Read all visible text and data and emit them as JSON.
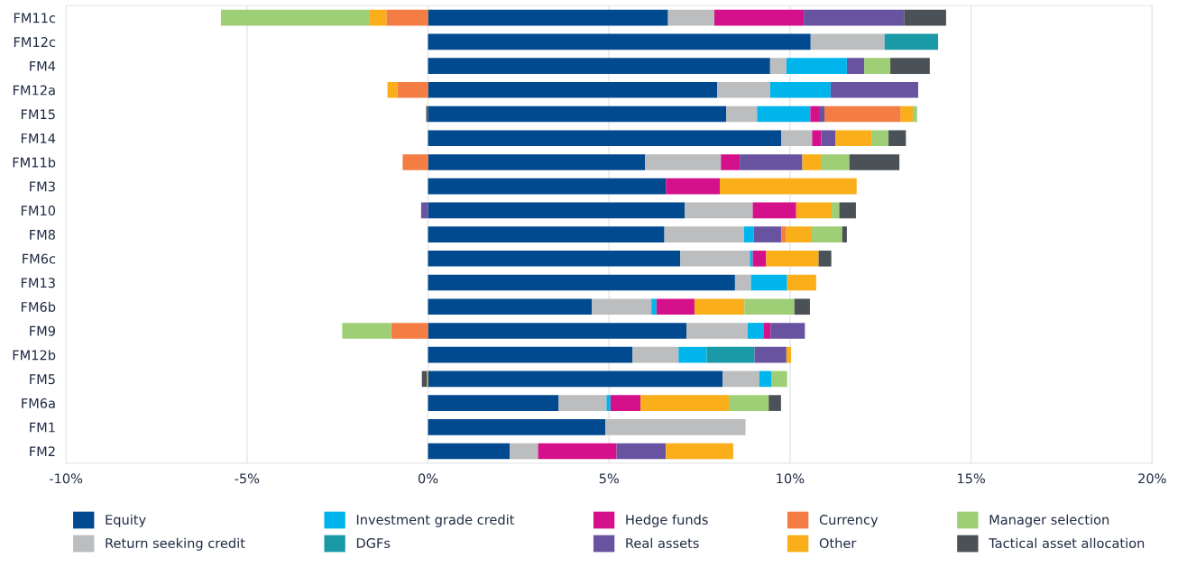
{
  "chart_data": {
    "type": "bar",
    "orientation": "horizontal",
    "stacked": true,
    "categories": [
      "FM11c",
      "FM12c",
      "FM4",
      "FM12a",
      "FM15",
      "FM14",
      "FM11b",
      "FM3",
      "FM10",
      "FM8",
      "FM6c",
      "FM13",
      "FM6b",
      "FM9",
      "FM12b",
      "FM5",
      "FM6a",
      "FM1",
      "FM2"
    ],
    "series": [
      {
        "name": "Equity",
        "color": "#014a8f",
        "values": [
          6.63,
          10.57,
          9.45,
          7.99,
          8.24,
          9.76,
          6.0,
          6.57,
          7.09,
          6.53,
          6.97,
          8.48,
          4.53,
          7.14,
          5.65,
          8.14,
          3.61,
          4.9,
          2.26
        ]
      },
      {
        "name": "Return seeking credit",
        "color": "#bcbdbe",
        "values": [
          1.28,
          2.04,
          0.45,
          1.46,
          0.85,
          0.85,
          2.09,
          null,
          1.88,
          2.2,
          1.92,
          0.44,
          1.64,
          1.69,
          1.27,
          1.01,
          1.32,
          3.87,
          0.78
        ]
      },
      {
        "name": "Investment grade credit",
        "color": "#00b5ec",
        "values": [
          null,
          null,
          1.67,
          1.67,
          1.47,
          null,
          null,
          null,
          null,
          0.27,
          0.08,
          1.0,
          0.14,
          0.45,
          0.78,
          0.33,
          0.11,
          null,
          null
        ]
      },
      {
        "name": "DGFs",
        "color": "#1a9aa6",
        "values": [
          null,
          1.48,
          null,
          null,
          null,
          null,
          null,
          null,
          null,
          null,
          null,
          null,
          null,
          null,
          1.32,
          null,
          null,
          null,
          null
        ]
      },
      {
        "name": "Hedge funds",
        "color": "#d4108b",
        "values": [
          2.47,
          null,
          null,
          null,
          0.24,
          0.25,
          0.52,
          1.49,
          1.2,
          null,
          0.37,
          null,
          1.05,
          0.18,
          null,
          null,
          0.83,
          null,
          2.17
        ]
      },
      {
        "name": "Real assets",
        "color": "#6853a1",
        "values": [
          2.77,
          null,
          0.48,
          2.42,
          0.15,
          0.39,
          1.73,
          null,
          -0.19,
          0.76,
          null,
          null,
          null,
          0.95,
          0.88,
          null,
          null,
          null,
          1.36
        ]
      },
      {
        "name": "Currency",
        "color": "#f47d44",
        "values": [
          -1.15,
          null,
          null,
          -0.85,
          2.11,
          null,
          -0.7,
          null,
          null,
          0.12,
          null,
          null,
          null,
          -1.02,
          null,
          null,
          null,
          null,
          null
        ]
      },
      {
        "name": "Other",
        "color": "#f9ae1a",
        "values": [
          -0.48,
          null,
          null,
          -0.27,
          0.33,
          1.0,
          0.51,
          3.78,
          0.98,
          0.72,
          1.45,
          0.8,
          1.38,
          null,
          0.13,
          -0.03,
          2.44,
          null,
          1.86
        ]
      },
      {
        "name": "Manager selection",
        "color": "#9ecf76",
        "values": [
          -4.09,
          null,
          0.72,
          null,
          0.12,
          0.47,
          0.79,
          null,
          0.21,
          0.84,
          null,
          null,
          1.38,
          -1.35,
          null,
          0.44,
          1.1,
          null,
          null
        ]
      },
      {
        "name": "Tactical asset allocation",
        "color": "#4a5157",
        "values": [
          1.16,
          null,
          1.09,
          null,
          -0.05,
          0.48,
          1.38,
          null,
          0.46,
          0.13,
          0.35,
          null,
          0.43,
          null,
          null,
          -0.14,
          0.34,
          null,
          null
        ]
      }
    ],
    "xlim": [
      -10,
      20
    ],
    "xticks": [
      {
        "value": -10,
        "label": "-10%"
      },
      {
        "value": -5,
        "label": "-5%"
      },
      {
        "value": 0,
        "label": "0%"
      },
      {
        "value": 5,
        "label": "5%"
      },
      {
        "value": 10,
        "label": "10%"
      },
      {
        "value": 15,
        "label": "15%"
      },
      {
        "value": 20,
        "label": "20%"
      }
    ],
    "grid": "x",
    "legend": "bottom"
  }
}
